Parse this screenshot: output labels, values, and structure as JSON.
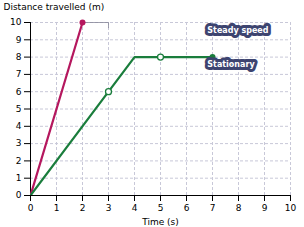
{
  "chart_data": {
    "type": "line",
    "xlabel": "Time (s)",
    "ylabel": "Distance travelled (m)",
    "xlim": [
      0,
      10
    ],
    "ylim": [
      0,
      10
    ],
    "xticks": [
      0,
      1,
      2,
      3,
      4,
      5,
      6,
      7,
      8,
      9,
      10
    ],
    "yticks": [
      0,
      1,
      2,
      3,
      4,
      5,
      6,
      7,
      8,
      9,
      10
    ],
    "grid": true,
    "series": [
      {
        "type": "line",
        "color": "#b5175e",
        "x": [
          0,
          2
        ],
        "values": [
          0,
          10
        ]
      },
      {
        "type": "connector",
        "color": "#888899",
        "x": [
          2,
          3,
          3
        ],
        "values": [
          10,
          10,
          9.7
        ]
      },
      {
        "type": "connector",
        "color": "#3d4470",
        "x": [
          5,
          7,
          7
        ],
        "values": [
          8,
          8,
          7.7
        ]
      },
      {
        "type": "line",
        "color": "#1a7d3c",
        "x": [
          0,
          3,
          4,
          5,
          7
        ],
        "values": [
          0,
          6,
          8,
          8,
          8
        ]
      },
      {
        "type": "scatter",
        "marker": "open_circle",
        "color": "#1a7d3c",
        "x": [
          3,
          5
        ],
        "values": [
          6,
          8
        ]
      },
      {
        "type": "scatter",
        "marker": "circle",
        "color": "#b5175e",
        "x": [
          2
        ],
        "values": [
          10
        ]
      },
      {
        "type": "scatter",
        "marker": "circle",
        "color": "#1a7d3c",
        "x": [
          7
        ],
        "values": [
          8
        ]
      }
    ],
    "annotations": [
      {
        "text": "Steady speed",
        "x": 6.8,
        "y": 9.55,
        "color": "#3d4470"
      },
      {
        "text": "Stationary",
        "x": 6.8,
        "y": 7.6,
        "color": "#3d4470"
      }
    ]
  }
}
